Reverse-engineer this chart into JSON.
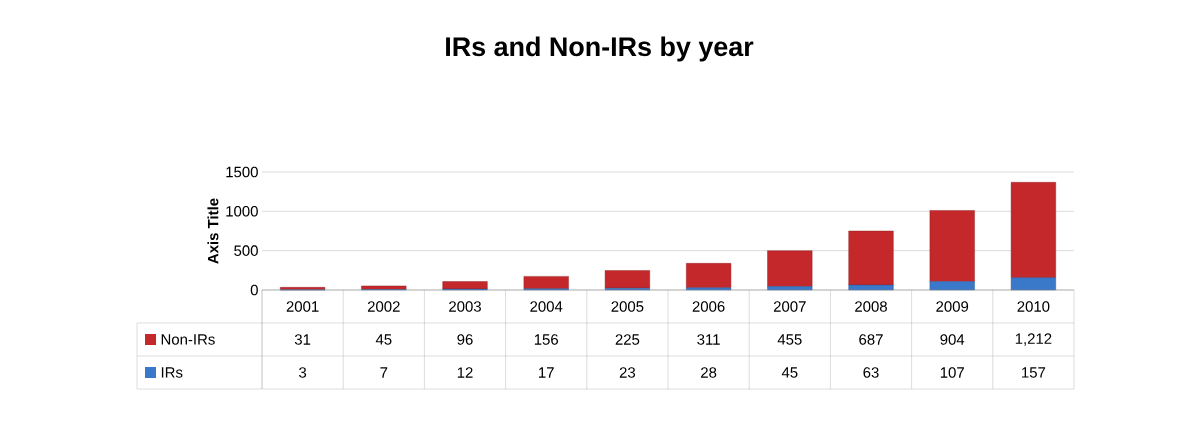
{
  "chart_data": {
    "type": "bar",
    "title": "IRs and Non-IRs by year",
    "ylabel": "Axis Title",
    "stacked": true,
    "categories": [
      "2001",
      "2002",
      "2003",
      "2004",
      "2005",
      "2006",
      "2007",
      "2008",
      "2009",
      "2010"
    ],
    "series": [
      {
        "name": "IRs",
        "color": "#3a78c9",
        "values": [
          3,
          7,
          12,
          17,
          23,
          28,
          45,
          63,
          107,
          157
        ],
        "value_labels": [
          "3",
          "7",
          "12",
          "17",
          "23",
          "28",
          "45",
          "63",
          "107",
          "157"
        ]
      },
      {
        "name": "Non-IRs",
        "color": "#c4282b",
        "values": [
          31,
          45,
          96,
          156,
          225,
          311,
          455,
          687,
          904,
          1212
        ],
        "value_labels": [
          "31",
          "45",
          "96",
          "156",
          "225",
          "311",
          "455",
          "687",
          "904",
          "1,212"
        ]
      }
    ],
    "ylim": [
      0,
      1500
    ],
    "yticks": [
      0,
      500,
      1000,
      1500
    ],
    "grid": "y",
    "legend": "bottom"
  }
}
